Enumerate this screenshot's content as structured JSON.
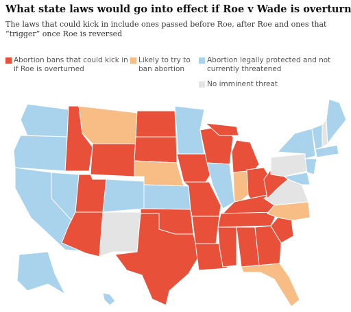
{
  "header": {
    "title": "What state laws would go into effect if Roe v Wade is overturned?",
    "subtitle": "The laws that could kick in include ones passed before Roe, after Roe and ones that “trigger” once Roe is reversed"
  },
  "legend": [
    {
      "label": "Abortion bans that could kick in if Roe is overturned",
      "color": "#e8503a"
    },
    {
      "label": "Likely to try to ban abortion",
      "color": "#f7bd84"
    },
    {
      "label": "Abortion legally protected and not currently threatened",
      "color": "#a9d3ec"
    },
    {
      "label": "No imminent threat",
      "color": "#e4e4e4"
    }
  ]
}
